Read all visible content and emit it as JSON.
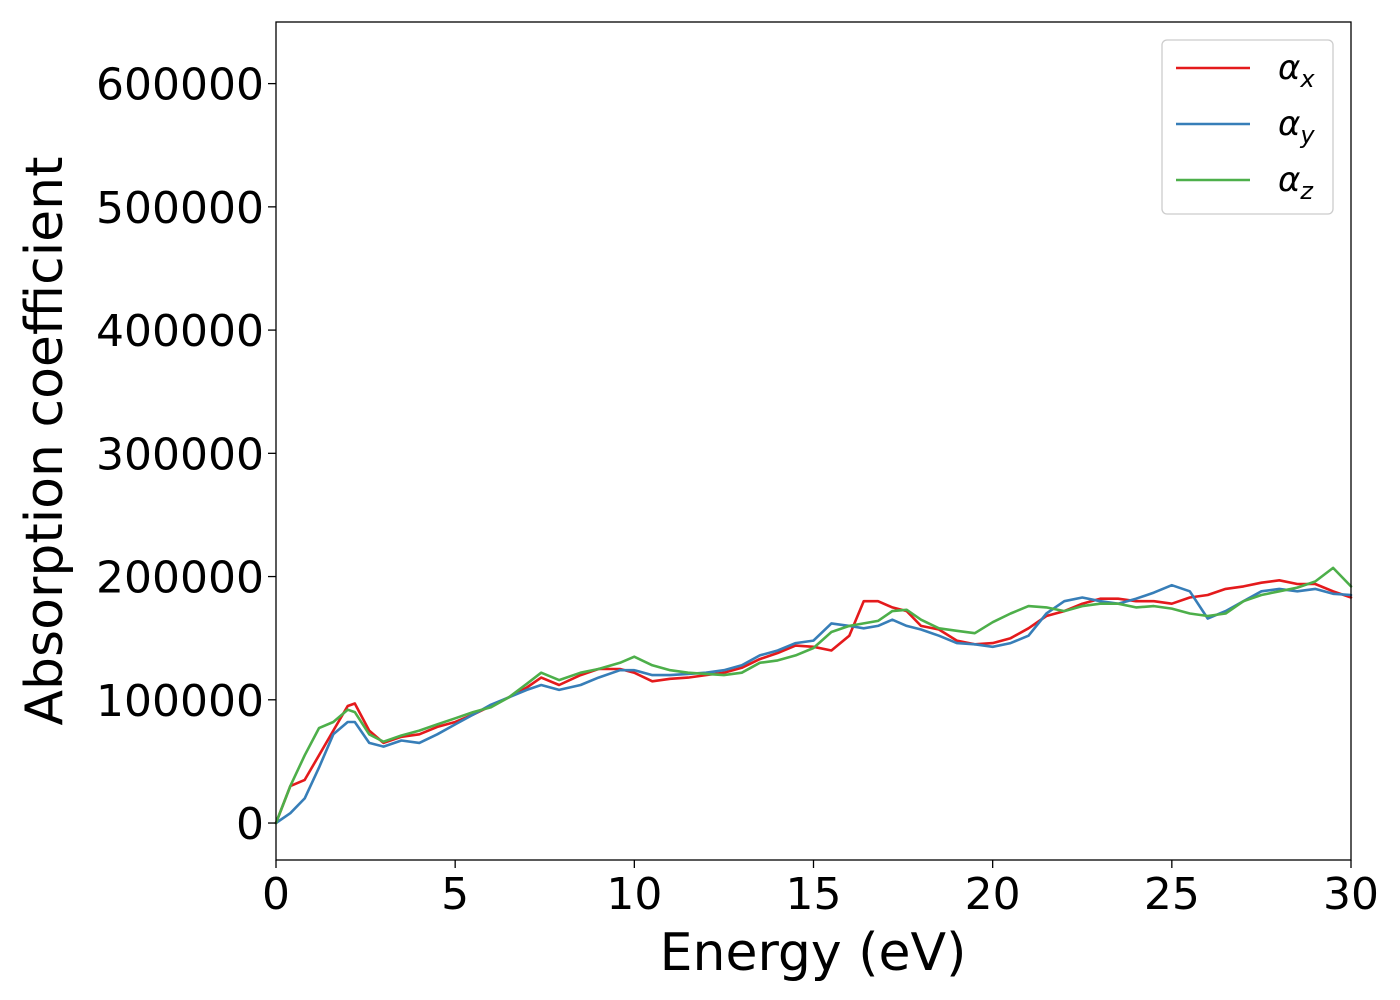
{
  "chart_data": {
    "type": "line",
    "xlabel": "Energy (eV)",
    "ylabel": "Absorption coefficient",
    "xlim": [
      0,
      30
    ],
    "ylim": [
      -30000,
      650000
    ],
    "xticks": [
      0,
      5,
      10,
      15,
      20,
      25,
      30
    ],
    "yticks": [
      0,
      100000,
      200000,
      300000,
      400000,
      500000,
      600000
    ],
    "grid": false,
    "legend_position": "top-right",
    "series": [
      {
        "name": "α",
        "subscript": "x",
        "color": "#e41a1c",
        "x": [
          0,
          0.4,
          0.8,
          1.2,
          1.6,
          2.0,
          2.2,
          2.6,
          3.0,
          3.5,
          4.0,
          4.5,
          5.0,
          5.5,
          6.0,
          6.5,
          7.0,
          7.4,
          7.9,
          8.5,
          9.0,
          9.6,
          10.0,
          10.5,
          11.0,
          11.5,
          12.0,
          12.5,
          13.0,
          13.5,
          14.0,
          14.5,
          15.0,
          15.5,
          16.0,
          16.4,
          16.8,
          17.2,
          17.6,
          18.0,
          18.5,
          19.0,
          19.5,
          20.0,
          20.5,
          21.0,
          21.5,
          22.0,
          22.5,
          23.0,
          23.5,
          24.0,
          24.5,
          25.0,
          25.5,
          26.0,
          26.5,
          27.0,
          27.5,
          28.0,
          28.5,
          29.0,
          29.5,
          30.0
        ],
        "y": [
          0,
          30000,
          35000,
          55000,
          75000,
          95000,
          97000,
          75000,
          65000,
          70000,
          72000,
          78000,
          82000,
          88000,
          95000,
          102000,
          110000,
          118000,
          112000,
          120000,
          125000,
          125000,
          122000,
          115000,
          117000,
          118000,
          120000,
          122000,
          126000,
          133000,
          138000,
          144000,
          143000,
          140000,
          152000,
          180000,
          180000,
          175000,
          172000,
          160000,
          157000,
          148000,
          145000,
          146000,
          150000,
          158000,
          168000,
          172000,
          178000,
          182000,
          182000,
          180000,
          180000,
          178000,
          183000,
          185000,
          190000,
          192000,
          195000,
          197000,
          194000,
          194000,
          188000,
          183000
        ]
      },
      {
        "name": "α",
        "subscript": "y",
        "color": "#377eb8",
        "x": [
          0,
          0.4,
          0.8,
          1.2,
          1.6,
          2.0,
          2.2,
          2.6,
          3.0,
          3.5,
          4.0,
          4.5,
          5.0,
          5.5,
          6.0,
          6.5,
          7.0,
          7.4,
          7.9,
          8.5,
          9.0,
          9.6,
          10.0,
          10.5,
          11.0,
          11.5,
          12.0,
          12.5,
          13.0,
          13.5,
          14.0,
          14.5,
          15.0,
          15.5,
          16.0,
          16.4,
          16.8,
          17.2,
          17.6,
          18.0,
          18.5,
          19.0,
          19.5,
          20.0,
          20.5,
          21.0,
          21.5,
          22.0,
          22.5,
          23.0,
          23.5,
          24.0,
          24.5,
          25.0,
          25.5,
          26.0,
          26.5,
          27.0,
          27.5,
          28.0,
          28.5,
          29.0,
          29.5,
          30.0
        ],
        "y": [
          0,
          8000,
          20000,
          45000,
          72000,
          82000,
          82000,
          65000,
          62000,
          67000,
          65000,
          72000,
          80000,
          88000,
          96000,
          102000,
          108000,
          112000,
          108000,
          112000,
          118000,
          124000,
          124000,
          120000,
          120000,
          121000,
          122000,
          124000,
          128000,
          136000,
          140000,
          146000,
          148000,
          162000,
          160000,
          158000,
          160000,
          165000,
          160000,
          157000,
          152000,
          146000,
          145000,
          143000,
          146000,
          152000,
          170000,
          180000,
          183000,
          180000,
          178000,
          182000,
          187000,
          193000,
          188000,
          166000,
          172000,
          180000,
          188000,
          190000,
          188000,
          190000,
          186000,
          185000
        ]
      },
      {
        "name": "α",
        "subscript": "z",
        "color": "#4daf4a",
        "x": [
          0,
          0.4,
          0.8,
          1.2,
          1.6,
          2.0,
          2.2,
          2.6,
          3.0,
          3.5,
          4.0,
          4.5,
          5.0,
          5.5,
          6.0,
          6.5,
          7.0,
          7.4,
          7.9,
          8.5,
          9.0,
          9.6,
          10.0,
          10.5,
          11.0,
          11.5,
          12.0,
          12.5,
          13.0,
          13.5,
          14.0,
          14.5,
          15.0,
          15.5,
          16.0,
          16.4,
          16.8,
          17.2,
          17.6,
          18.0,
          18.5,
          19.0,
          19.5,
          20.0,
          20.5,
          21.0,
          21.5,
          22.0,
          22.5,
          23.0,
          23.5,
          24.0,
          24.5,
          25.0,
          25.5,
          26.0,
          26.5,
          27.0,
          27.5,
          28.0,
          28.5,
          29.0,
          29.5,
          30.0
        ],
        "y": [
          0,
          30000,
          55000,
          77000,
          82000,
          92000,
          90000,
          72000,
          66000,
          71000,
          75000,
          80000,
          85000,
          90000,
          94000,
          102000,
          113000,
          122000,
          116000,
          122000,
          125000,
          130000,
          135000,
          128000,
          124000,
          122000,
          121000,
          120000,
          122000,
          130000,
          132000,
          136000,
          142000,
          155000,
          160000,
          162000,
          164000,
          172000,
          173000,
          165000,
          158000,
          156000,
          154000,
          163000,
          170000,
          176000,
          175000,
          172000,
          176000,
          178000,
          178000,
          175000,
          176000,
          174000,
          170000,
          168000,
          170000,
          180000,
          185000,
          188000,
          191000,
          196000,
          207000,
          192000
        ]
      }
    ]
  }
}
